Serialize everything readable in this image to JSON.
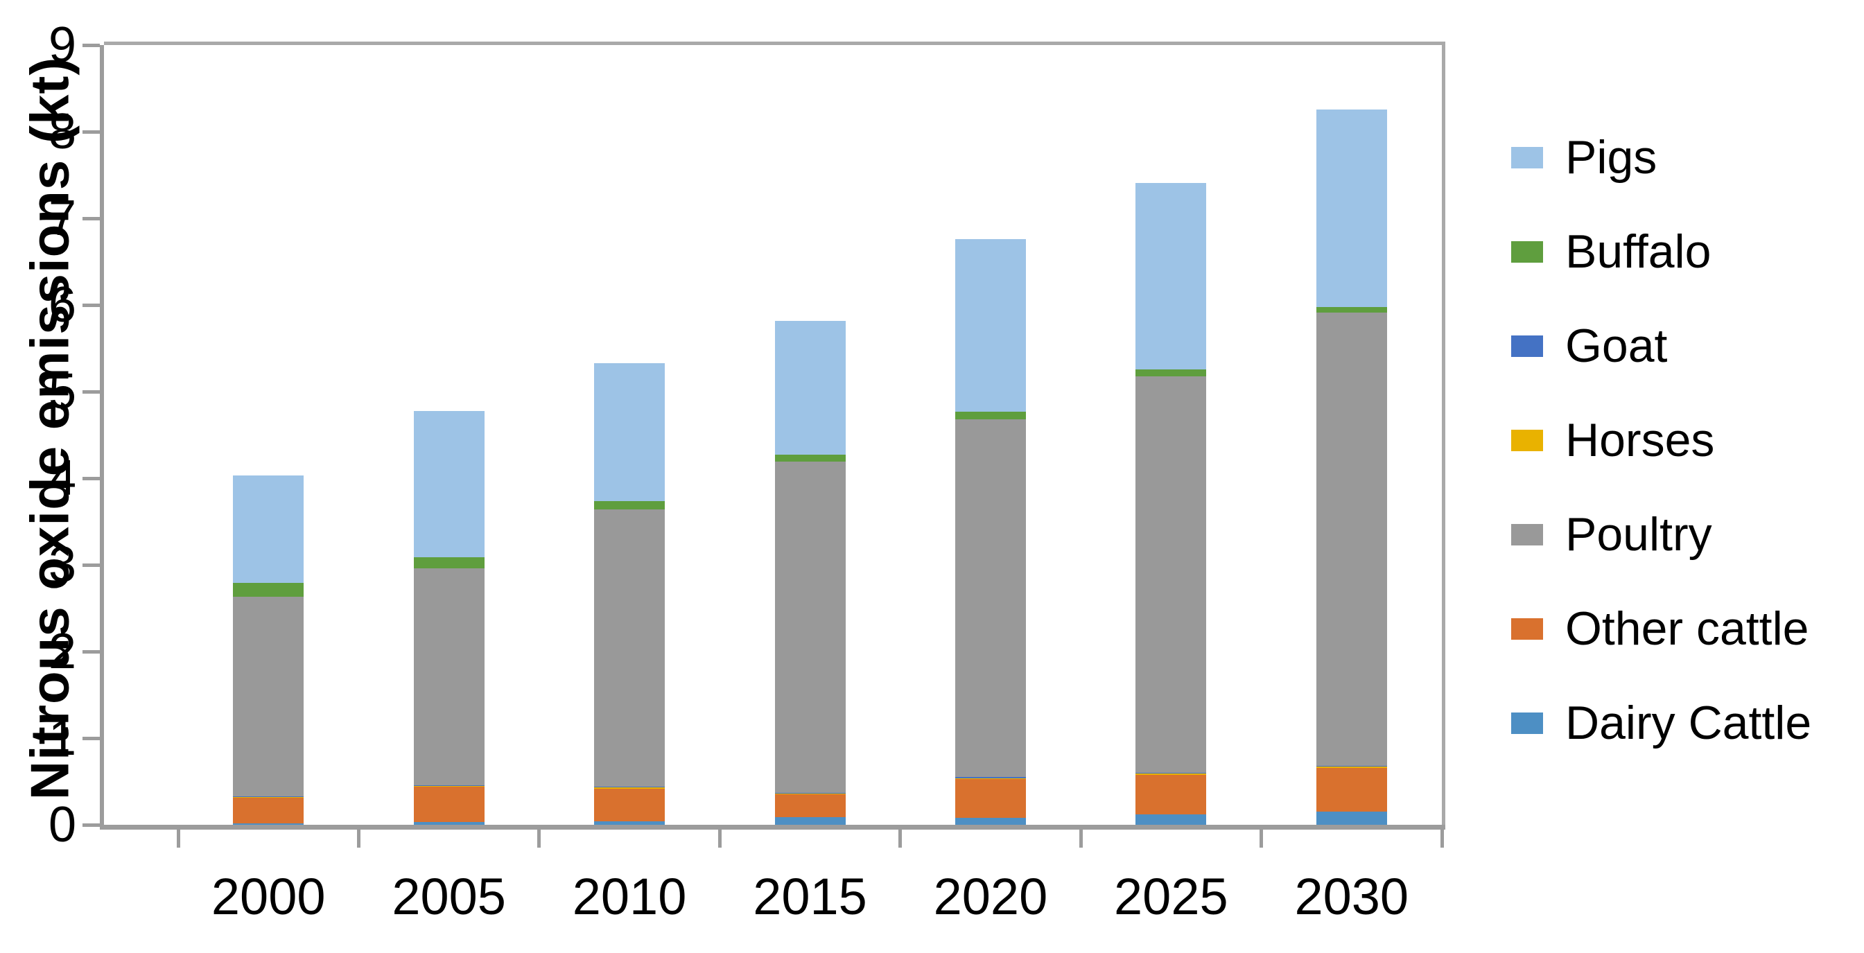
{
  "chart_data": {
    "type": "bar",
    "stacked": true,
    "title": "",
    "xlabel": "",
    "ylabel": "Nitrous oxide emissions (kt)",
    "unit": "kt",
    "categories": [
      "2000",
      "2005",
      "2010",
      "2015",
      "2020",
      "2025",
      "2030"
    ],
    "series_bottom_to_top": [
      {
        "name": "Dairy Cattle",
        "color": "#4d8fc4",
        "values": [
          0.02,
          0.03,
          0.04,
          0.09,
          0.08,
          0.12,
          0.15
        ]
      },
      {
        "name": "Other cattle",
        "color": "#d9712e",
        "values": [
          0.29,
          0.41,
          0.38,
          0.26,
          0.45,
          0.46,
          0.51
        ]
      },
      {
        "name": "Horses",
        "color": "#e9b200",
        "values": [
          0.01,
          0.01,
          0.01,
          0.01,
          0.01,
          0.01,
          0.01
        ]
      },
      {
        "name": "Goat",
        "color": "#4472c4",
        "values": [
          0.01,
          0.01,
          0.01,
          0.01,
          0.01,
          0.01,
          0.01
        ]
      },
      {
        "name": "Poultry",
        "color": "#999999",
        "values": [
          2.3,
          2.5,
          3.2,
          3.82,
          4.13,
          4.58,
          5.23
        ]
      },
      {
        "name": "Buffalo",
        "color": "#5f9e3e",
        "values": [
          0.16,
          0.13,
          0.1,
          0.08,
          0.09,
          0.08,
          0.07
        ]
      },
      {
        "name": "Pigs",
        "color": "#9dc3e6",
        "values": [
          1.24,
          1.69,
          1.59,
          1.55,
          1.99,
          2.15,
          2.28
        ]
      }
    ],
    "bar_totals": [
      4.03,
      4.78,
      5.33,
      5.82,
      6.76,
      7.41,
      8.26
    ],
    "legend": {
      "position": "right",
      "entries_top_to_bottom": [
        "Pigs",
        "Buffalo",
        "Goat",
        "Horses",
        "Poultry",
        "Other cattle",
        "Dairy Cattle"
      ]
    },
    "ylim": [
      0,
      9
    ],
    "yticks": [
      0,
      1,
      2,
      3,
      4,
      5,
      6,
      7,
      8,
      9
    ],
    "grid": false
  },
  "style_colors": {
    "axis_line": "#9c9c9c",
    "plot_border": "#a9a9a9",
    "text": "#000000"
  }
}
